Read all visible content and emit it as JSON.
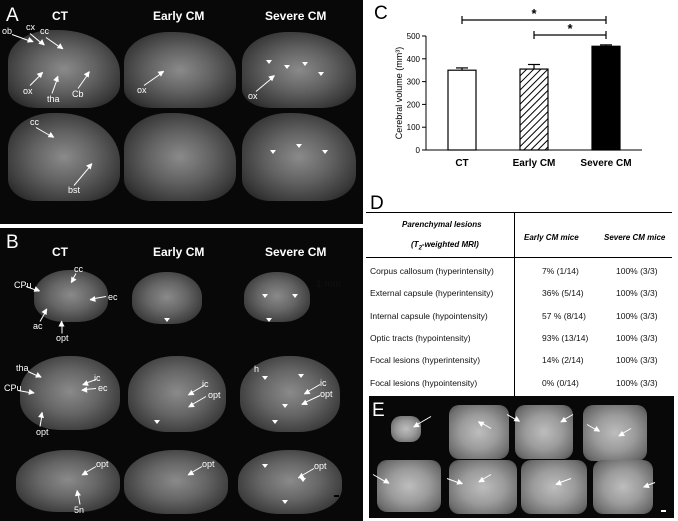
{
  "panels": {
    "a": "A",
    "b": "B",
    "c": "C",
    "d": "D",
    "e": "E"
  },
  "panel_a": {
    "headers": [
      "CT",
      "Early CM",
      "Severe CM"
    ],
    "labels": {
      "ob": "ob",
      "cx": "cx",
      "cc_top": "cc",
      "ox1": "ox",
      "tha": "tha",
      "cb": "Cb",
      "ox2": "ox",
      "ox3": "ox",
      "cc_row2": "cc",
      "bst": "bst"
    }
  },
  "panel_b": {
    "headers": [
      "CT",
      "Early CM",
      "Severe CM"
    ],
    "labels": {
      "cpu1": "CPu",
      "cc1": "cc",
      "ec1": "ec",
      "ac": "ac",
      "opt1": "opt",
      "tha": "tha",
      "ic1": "ic",
      "cpu2": "CPu",
      "ec2": "ec",
      "opt2": "opt",
      "ic2": "ic",
      "opt3": "opt",
      "h": "h",
      "ic3": "ic",
      "opt4": "opt",
      "opt5": "opt",
      "opt6": "opt",
      "opt7": "opt",
      "fn": "5n"
    },
    "scale": "1 mm"
  },
  "chart_data": {
    "type": "bar",
    "categories": [
      "CT",
      "Early CM",
      "Severe CM"
    ],
    "values": [
      350,
      355,
      455
    ],
    "errors": [
      10,
      20,
      6
    ],
    "ylabel": "Cerebral volume (mm³)",
    "ylim": [
      0,
      500
    ],
    "yticks": [
      0,
      100,
      200,
      300,
      400,
      500
    ],
    "bar_styles": [
      "white",
      "hatched",
      "black"
    ],
    "significance": [
      {
        "from": "CT",
        "to": "Severe CM",
        "label": "*"
      },
      {
        "from": "Early CM",
        "to": "Severe CM",
        "label": "*"
      }
    ]
  },
  "table_d": {
    "head_col1_line1": "Parenchymal lesions",
    "head_col1_line2_pre": "(T",
    "head_col1_sub": "2",
    "head_col1_line2_post": "-weighted MRI)",
    "head_col2": "Early CM mice",
    "head_col3": "Severe CM mice",
    "rows": [
      {
        "lesion": "Corpus callosum (hyperintensity)",
        "early": "7% (1/14)",
        "severe": "100% (3/3)"
      },
      {
        "lesion": "External capsule (hyperintensity)",
        "early": "36% (5/14)",
        "severe": "100% (3/3)"
      },
      {
        "lesion": "Internal capsule (hypointensity)",
        "early": "57 % (8/14)",
        "severe": "100% (3/3)"
      },
      {
        "lesion": "Optic tracts (hypointensity)",
        "early": "93% (13/14)",
        "severe": "100% (3/3)"
      },
      {
        "lesion": "Focal lesions (hyperintensity)",
        "early": "14% (2/14)",
        "severe": "100% (3/3)"
      },
      {
        "lesion": "Focal lesions (hypointensity)",
        "early": "0% (0/14)",
        "severe": "100% (3/3)"
      }
    ]
  }
}
